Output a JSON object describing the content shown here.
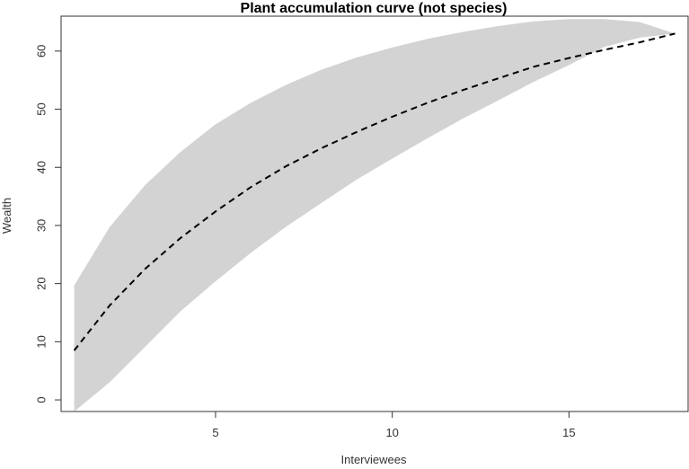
{
  "chart_data": {
    "type": "area",
    "title": "Plant accumulation curve (not species)",
    "xlabel": "Interviewees",
    "ylabel": "Wealth",
    "xlim": [
      0.63,
      18.37
    ],
    "ylim": [
      -2,
      66
    ],
    "x_ticks": [
      5,
      10,
      15
    ],
    "y_ticks": [
      0,
      10,
      20,
      30,
      40,
      50,
      60
    ],
    "grid": false,
    "series": [
      {
        "type": "line",
        "style": "dashed",
        "x": [
          1,
          2,
          3,
          4,
          5,
          6,
          7,
          8,
          9,
          10,
          11,
          12,
          13,
          14,
          15,
          16,
          17,
          18
        ],
        "values": [
          8.5,
          16.2,
          22.5,
          27.8,
          32.4,
          36.6,
          40.2,
          43.3,
          46.1,
          48.7,
          51.1,
          53.3,
          55.3,
          57.3,
          58.8,
          60.2,
          61.5,
          63.0
        ]
      },
      {
        "type": "band",
        "color": "#d3d3d3",
        "x": [
          1,
          2,
          3,
          4,
          5,
          6,
          7,
          8,
          9,
          10,
          11,
          12,
          13,
          14,
          15,
          16,
          17,
          18
        ],
        "upper": [
          19.7,
          29.7,
          36.9,
          42.6,
          47.4,
          51.1,
          54.2,
          56.8,
          58.9,
          60.6,
          62.1,
          63.3,
          64.3,
          65.1,
          65.5,
          65.5,
          65.0,
          63.0
        ],
        "lower": [
          -2.6,
          3.0,
          9.1,
          15.2,
          20.4,
          25.3,
          29.8,
          33.9,
          37.9,
          41.5,
          45.0,
          48.4,
          51.5,
          54.7,
          57.6,
          60.7,
          62.3,
          63.0
        ]
      }
    ]
  }
}
